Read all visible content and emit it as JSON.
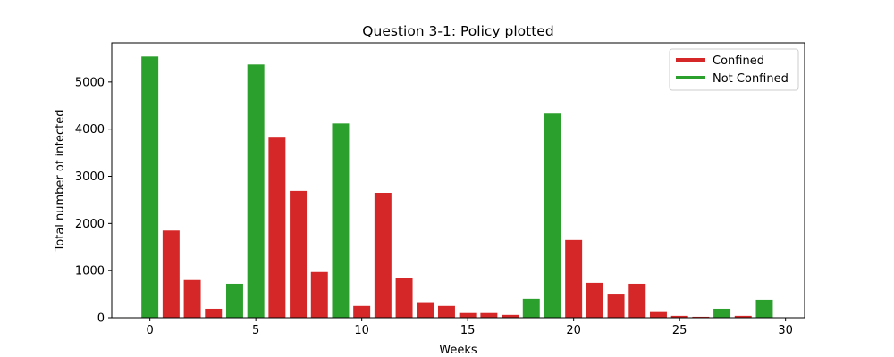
{
  "chart_data": {
    "type": "bar",
    "title": "Question 3-1: Policy plotted",
    "xlabel": "Weeks",
    "ylabel": "Total number of infected",
    "xlim": [
      -1.8,
      30.9
    ],
    "ylim": [
      0,
      5830
    ],
    "xticks": [
      0,
      5,
      10,
      15,
      20,
      25,
      30
    ],
    "yticks": [
      0,
      1000,
      2000,
      3000,
      4000,
      5000
    ],
    "grid": false,
    "legend_position": "top-right",
    "series": [
      {
        "name": "Confined",
        "color": "#d62728"
      },
      {
        "name": "Not Confined",
        "color": "#2ca02c"
      }
    ],
    "x": [
      0,
      1,
      2,
      3,
      4,
      5,
      6,
      7,
      8,
      9,
      10,
      11,
      12,
      13,
      14,
      15,
      16,
      17,
      18,
      19,
      20,
      21,
      22,
      23,
      24,
      25,
      26,
      27,
      28,
      29
    ],
    "values": [
      5540,
      1850,
      800,
      190,
      720,
      5370,
      3820,
      2690,
      970,
      4120,
      250,
      2650,
      850,
      330,
      250,
      100,
      100,
      60,
      400,
      4330,
      1650,
      740,
      510,
      720,
      120,
      40,
      20,
      190,
      40,
      380
    ],
    "policy": [
      "Not Confined",
      "Confined",
      "Confined",
      "Confined",
      "Not Confined",
      "Not Confined",
      "Confined",
      "Confined",
      "Confined",
      "Not Confined",
      "Confined",
      "Confined",
      "Confined",
      "Confined",
      "Confined",
      "Confined",
      "Confined",
      "Confined",
      "Not Confined",
      "Not Confined",
      "Confined",
      "Confined",
      "Confined",
      "Confined",
      "Confined",
      "Confined",
      "Confined",
      "Not Confined",
      "Confined",
      "Not Confined"
    ]
  }
}
